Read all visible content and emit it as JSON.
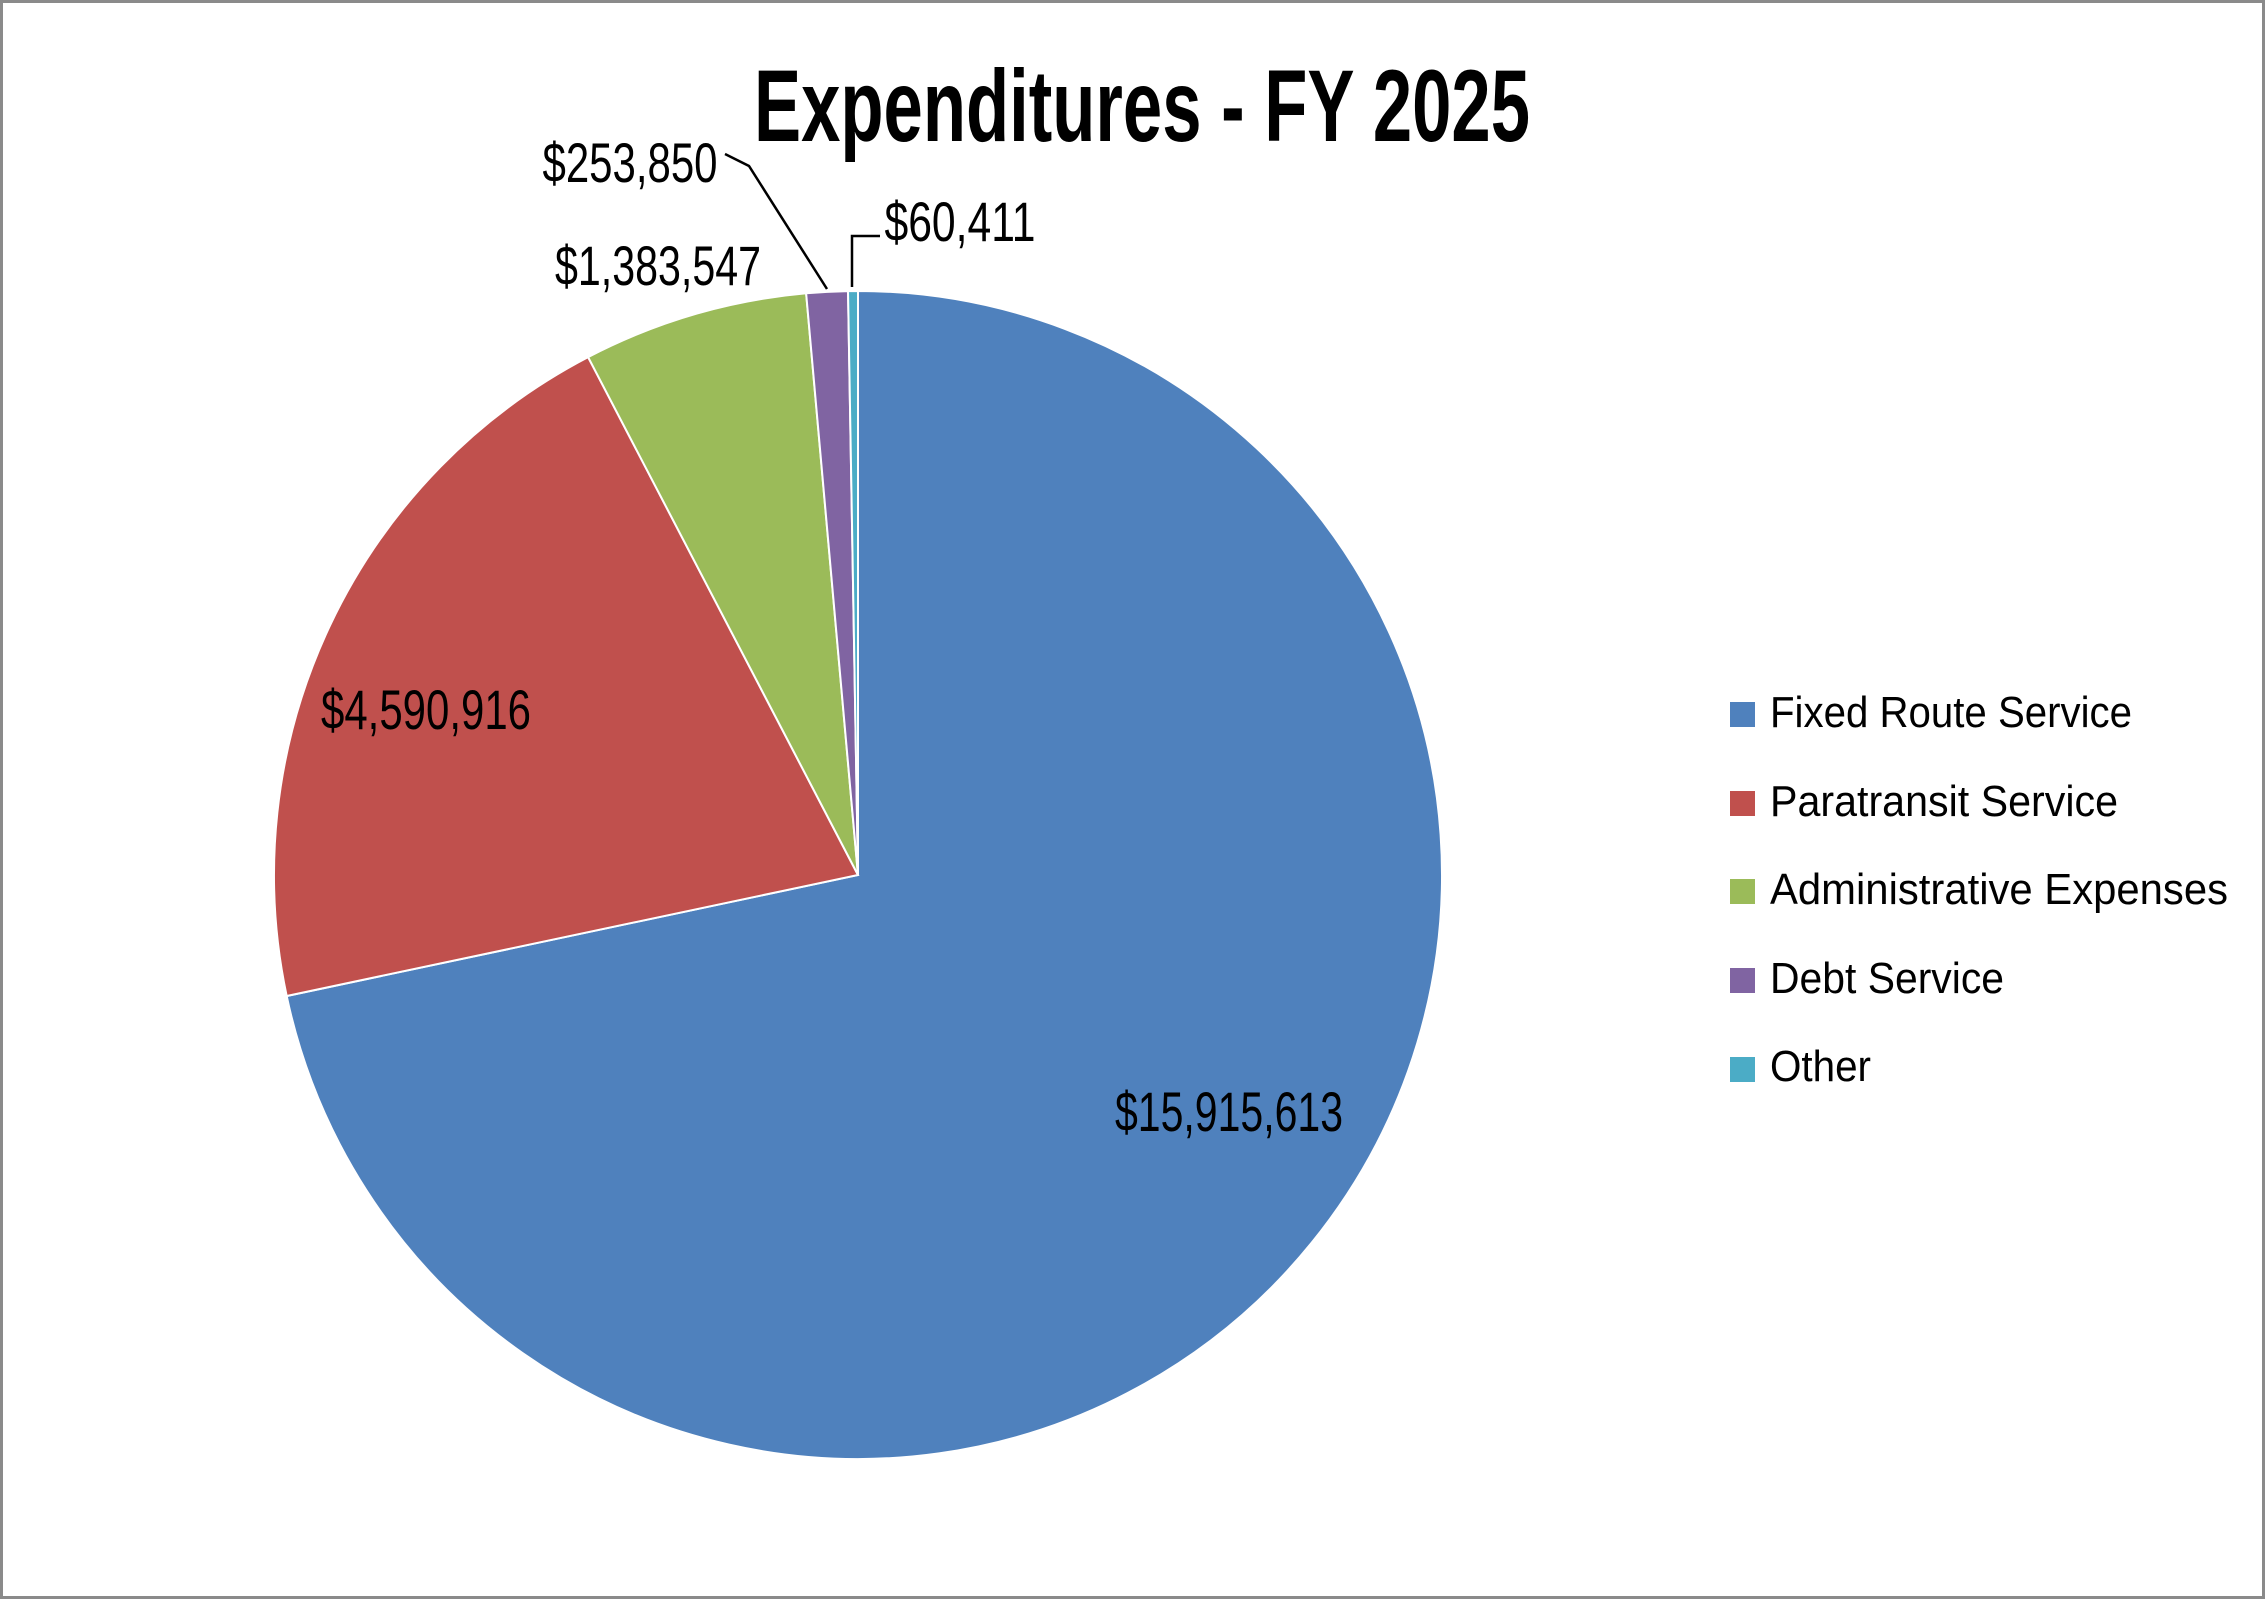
{
  "chart_data": {
    "type": "pie",
    "title": "Expenditures - FY 2025",
    "legend_position": "right",
    "start_angle_deg": 0,
    "direction": "clockwise",
    "slice_border_color": "#ffffff",
    "leader_line_color": "#000000",
    "slices": [
      {
        "label": "Fixed Route Service",
        "value": 15915613,
        "display_value": "$15,915,613",
        "color": "#4F81BD",
        "label_placement": "inside"
      },
      {
        "label": "Paratransit Service",
        "value": 4590916,
        "display_value": "$4,590,916",
        "color": "#C0504D",
        "label_placement": "inside"
      },
      {
        "label": "Administrative Expenses",
        "value": 1383547,
        "display_value": "$1,383,547",
        "color": "#9BBB59",
        "label_placement": "outside"
      },
      {
        "label": "Debt Service",
        "value": 253850,
        "display_value": "$253,850",
        "color": "#8064A2",
        "label_placement": "outside-leader"
      },
      {
        "label": "Other",
        "value": 60411,
        "display_value": "$60,411",
        "color": "#4BACC6",
        "label_placement": "outside-leader"
      }
    ]
  }
}
